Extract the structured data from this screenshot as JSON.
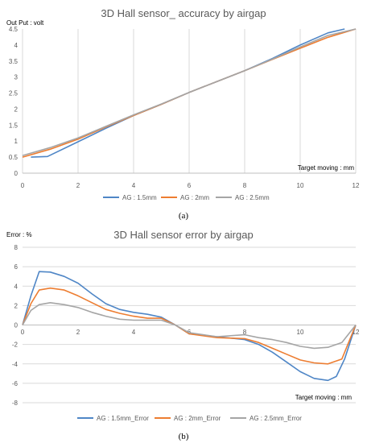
{
  "colors": {
    "AG 1.5mm": "#4f86c6",
    "AG 2mm": "#ed7d31",
    "AG 2.5mm": "#a5a5a5",
    "grid": "#d9d9d9",
    "axis": "#bfbfbf",
    "text": "#595959"
  },
  "captions": {
    "a": "(a)",
    "b": "(b)"
  },
  "chart_data": [
    {
      "type": "line",
      "title": "3D Hall sensor_ accuracy by airgap",
      "ylabel": "Out Put : volt",
      "xlabel": "Target moving : mm",
      "xlim": [
        0,
        12
      ],
      "ylim": [
        0,
        4.5
      ],
      "x_ticks": [
        "0",
        "2",
        "4",
        "6",
        "8",
        "10",
        "12"
      ],
      "y_ticks": [
        "0",
        "0.5",
        "1",
        "1.5",
        "2",
        "2.5",
        "3",
        "3.5",
        "4",
        "4.5"
      ],
      "grid": "vertical",
      "legend": "bottom",
      "series": [
        {
          "name": "AG : 1.5mm",
          "color": "#4f86c6",
          "x": [
            0.3,
            0.9,
            2,
            3,
            4,
            5,
            6,
            7,
            8,
            9,
            10,
            11,
            11.6
          ],
          "y": [
            0.5,
            0.52,
            0.98,
            1.4,
            1.8,
            2.15,
            2.52,
            2.86,
            3.2,
            3.58,
            4.0,
            4.38,
            4.5
          ]
        },
        {
          "name": "AG : 2mm",
          "color": "#ed7d31",
          "x": [
            0,
            1,
            2,
            3,
            4,
            5,
            6,
            7,
            8,
            9,
            10,
            11,
            12
          ],
          "y": [
            0.5,
            0.75,
            1.06,
            1.44,
            1.8,
            2.15,
            2.52,
            2.86,
            3.2,
            3.55,
            3.9,
            4.24,
            4.5
          ]
        },
        {
          "name": "AG : 2.5mm",
          "color": "#a5a5a5",
          "x": [
            0,
            1,
            2,
            3,
            4,
            5,
            6,
            7,
            8,
            9,
            10,
            11,
            12
          ],
          "y": [
            0.55,
            0.8,
            1.1,
            1.46,
            1.82,
            2.16,
            2.52,
            2.86,
            3.2,
            3.56,
            3.94,
            4.3,
            4.5
          ]
        }
      ]
    },
    {
      "type": "line",
      "title": "3D Hall sensor error by airgap",
      "ylabel": "Error : %",
      "xlabel": "Target moving : mm",
      "xlim": [
        0,
        12
      ],
      "ylim": [
        -8,
        8
      ],
      "x_ticks": [
        "0",
        "2",
        "4",
        "6",
        "8",
        "10",
        "12"
      ],
      "y_ticks": [
        "-8",
        "-6",
        "-4",
        "-2",
        "0",
        "2",
        "4",
        "6",
        "8"
      ],
      "grid": "horizontal",
      "legend": "bottom",
      "series": [
        {
          "name": "AG : 1.5mm_Error",
          "color": "#4f86c6",
          "x": [
            0,
            0.3,
            0.6,
            1,
            1.5,
            2,
            2.5,
            3,
            3.5,
            4,
            4.5,
            5,
            5.5,
            6,
            7,
            8,
            8.5,
            9,
            9.5,
            10,
            10.5,
            11,
            11.3,
            11.6,
            12
          ],
          "y": [
            0,
            3.0,
            5.5,
            5.45,
            5.0,
            4.3,
            3.2,
            2.2,
            1.6,
            1.3,
            1.1,
            0.8,
            0,
            -0.9,
            -1.2,
            -1.5,
            -2.0,
            -2.8,
            -3.8,
            -4.8,
            -5.5,
            -5.7,
            -5.3,
            -3.5,
            0
          ]
        },
        {
          "name": "AG : 2mm_Error",
          "color": "#ed7d31",
          "x": [
            0,
            0.3,
            0.6,
            1,
            1.5,
            2,
            2.5,
            3,
            3.5,
            4,
            4.5,
            5,
            5.5,
            6,
            7,
            8,
            8.5,
            9,
            9.5,
            10,
            10.5,
            11,
            11.5,
            12
          ],
          "y": [
            0,
            2.2,
            3.6,
            3.8,
            3.6,
            3.0,
            2.3,
            1.6,
            1.2,
            0.9,
            0.7,
            0.7,
            0,
            -0.9,
            -1.3,
            -1.4,
            -1.8,
            -2.4,
            -3.0,
            -3.6,
            -3.9,
            -4.0,
            -3.5,
            0
          ]
        },
        {
          "name": "AG : 2.5mm_Error",
          "color": "#a5a5a5",
          "x": [
            0,
            0.3,
            0.6,
            1,
            1.5,
            2,
            2.5,
            3,
            3.5,
            4,
            4.5,
            5,
            5.5,
            6,
            7,
            8,
            8.5,
            9,
            9.5,
            10,
            10.5,
            11,
            11.5,
            12
          ],
          "y": [
            0,
            1.5,
            2.1,
            2.3,
            2.1,
            1.8,
            1.3,
            0.9,
            0.6,
            0.5,
            0.5,
            0.5,
            0,
            -0.8,
            -1.2,
            -1.0,
            -1.3,
            -1.5,
            -1.8,
            -2.2,
            -2.4,
            -2.3,
            -1.8,
            0
          ]
        }
      ]
    }
  ]
}
